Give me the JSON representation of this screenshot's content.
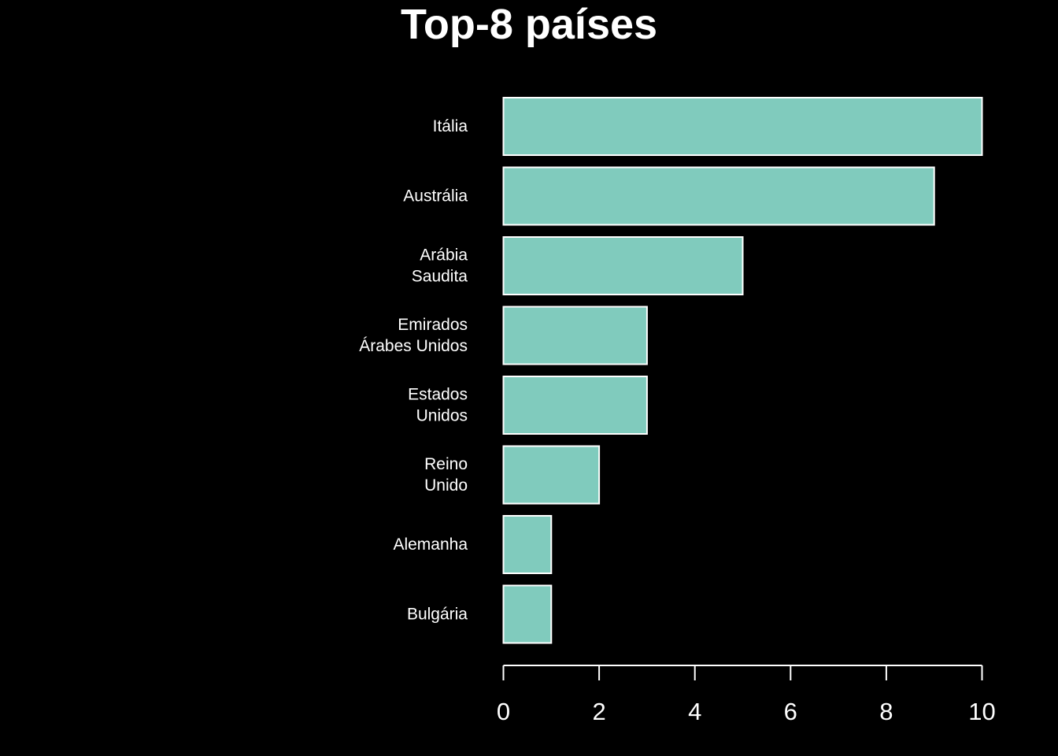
{
  "chart_data": {
    "type": "bar",
    "orientation": "horizontal",
    "title": "Top-8 países",
    "xlabel": "",
    "ylabel": "",
    "categories": [
      [
        "Itália"
      ],
      [
        "Austrália"
      ],
      [
        "Arábia",
        "Saudita"
      ],
      [
        "Emirados",
        "Árabes Unidos"
      ],
      [
        "Estados",
        "Unidos"
      ],
      [
        "Reino",
        "Unido"
      ],
      [
        "Alemanha"
      ],
      [
        "Bulgária"
      ]
    ],
    "values": [
      10,
      9,
      5,
      3,
      3,
      2,
      1,
      1
    ],
    "xlim": [
      0,
      10
    ],
    "xticks": [
      0,
      2,
      4,
      6,
      8,
      10
    ],
    "grid": false,
    "legend": "none",
    "colors": {
      "background": "#000000",
      "bar_fill": "#80cbbd",
      "bar_stroke": "#ffffff",
      "text": "#ffffff",
      "axis": "#ffffff"
    }
  }
}
